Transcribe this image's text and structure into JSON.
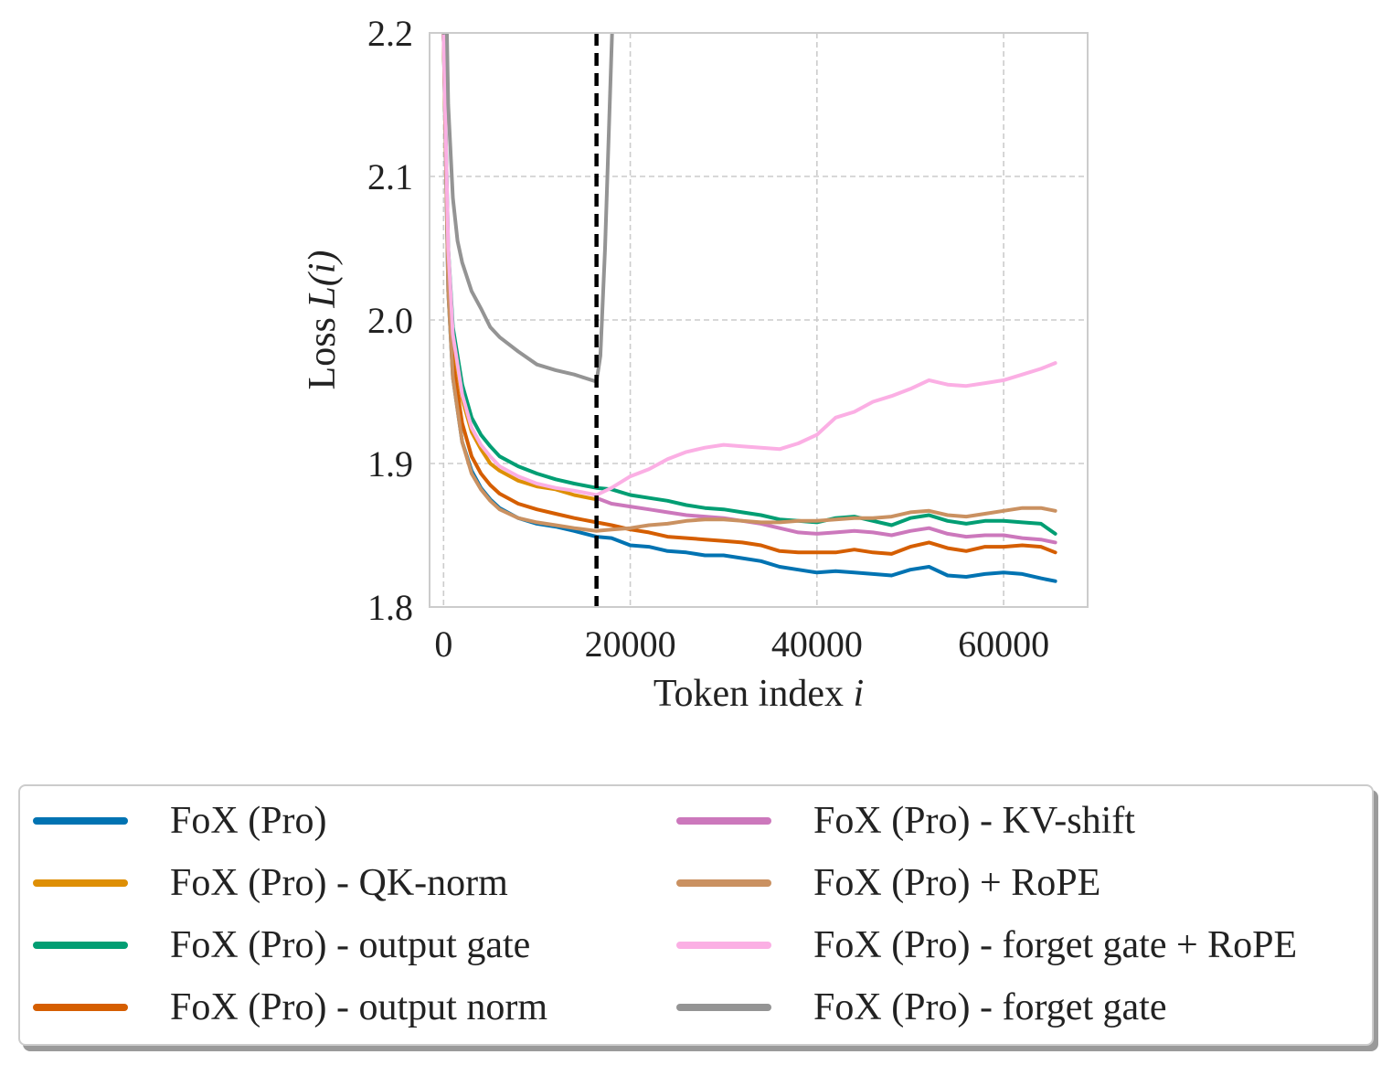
{
  "chart_data": {
    "type": "line",
    "title": "",
    "xlabel_prefix": "Token index ",
    "xlabel_var": "i",
    "ylabel_prefix": "Loss ",
    "ylabel_var": "L(i)",
    "xlim": [
      -1500,
      69000
    ],
    "ylim": [
      1.8,
      2.2
    ],
    "xticks": [
      0,
      20000,
      40000,
      60000
    ],
    "xtick_labels": [
      "0",
      "20000",
      "40000",
      "60000"
    ],
    "yticks": [
      1.8,
      1.9,
      2.0,
      2.1,
      2.2
    ],
    "ytick_labels": [
      "1.8",
      "1.9",
      "2.0",
      "2.1",
      "2.2"
    ],
    "grid": true,
    "vline_x": 16384,
    "legend_position": "below",
    "series": [
      {
        "name": "FoX (Pro)",
        "color": "#0173b2",
        "x": [
          0,
          500,
          1000,
          2000,
          3000,
          4000,
          5000,
          6000,
          8000,
          10000,
          12000,
          14000,
          16384,
          18000,
          20000,
          22000,
          24000,
          26000,
          28000,
          30000,
          32000,
          34000,
          36000,
          38000,
          40000,
          42000,
          44000,
          46000,
          48000,
          50000,
          52000,
          54000,
          56000,
          58000,
          60000,
          62000,
          64000,
          65536
        ],
        "y": [
          2.2,
          2.02,
          1.96,
          1.915,
          1.895,
          1.883,
          1.875,
          1.869,
          1.862,
          1.858,
          1.856,
          1.853,
          1.849,
          1.848,
          1.843,
          1.842,
          1.839,
          1.838,
          1.836,
          1.836,
          1.834,
          1.832,
          1.828,
          1.826,
          1.824,
          1.825,
          1.824,
          1.823,
          1.822,
          1.826,
          1.828,
          1.822,
          1.821,
          1.823,
          1.824,
          1.823,
          1.82,
          1.818
        ]
      },
      {
        "name": "FoX (Pro) - QK-norm",
        "color": "#de8f05",
        "x": [
          0,
          500,
          1000,
          2000,
          3000,
          4000,
          5000,
          6000,
          8000,
          10000,
          12000,
          14000,
          16384
        ],
        "y": [
          2.2,
          2.04,
          1.985,
          1.945,
          1.922,
          1.91,
          1.9,
          1.895,
          1.888,
          1.884,
          1.882,
          1.878,
          1.875
        ]
      },
      {
        "name": "FoX (Pro) - output gate",
        "color": "#029e73",
        "x": [
          0,
          500,
          1000,
          2000,
          3000,
          4000,
          5000,
          6000,
          8000,
          10000,
          12000,
          14000,
          16384,
          18000,
          20000,
          22000,
          24000,
          26000,
          28000,
          30000,
          32000,
          34000,
          36000,
          38000,
          40000,
          42000,
          44000,
          46000,
          48000,
          50000,
          52000,
          54000,
          56000,
          58000,
          60000,
          62000,
          64000,
          65536
        ],
        "y": [
          2.2,
          2.05,
          1.995,
          1.955,
          1.932,
          1.92,
          1.912,
          1.905,
          1.898,
          1.893,
          1.889,
          1.886,
          1.883,
          1.882,
          1.878,
          1.876,
          1.874,
          1.871,
          1.869,
          1.868,
          1.866,
          1.864,
          1.861,
          1.86,
          1.859,
          1.862,
          1.863,
          1.86,
          1.857,
          1.862,
          1.864,
          1.86,
          1.858,
          1.86,
          1.86,
          1.859,
          1.858,
          1.851
        ]
      },
      {
        "name": "FoX (Pro) - output norm",
        "color": "#d55e00",
        "x": [
          0,
          500,
          1000,
          2000,
          3000,
          4000,
          5000,
          6000,
          8000,
          10000,
          12000,
          14000,
          16384,
          18000,
          20000,
          22000,
          24000,
          26000,
          28000,
          30000,
          32000,
          34000,
          36000,
          38000,
          40000,
          42000,
          44000,
          46000,
          48000,
          50000,
          52000,
          54000,
          56000,
          58000,
          60000,
          62000,
          64000,
          65536
        ],
        "y": [
          2.2,
          2.03,
          1.97,
          1.928,
          1.905,
          1.893,
          1.885,
          1.879,
          1.872,
          1.868,
          1.865,
          1.862,
          1.859,
          1.857,
          1.854,
          1.852,
          1.849,
          1.848,
          1.847,
          1.846,
          1.845,
          1.843,
          1.839,
          1.838,
          1.838,
          1.838,
          1.84,
          1.838,
          1.837,
          1.842,
          1.845,
          1.841,
          1.839,
          1.842,
          1.842,
          1.843,
          1.842,
          1.838
        ]
      },
      {
        "name": "FoX (Pro) - KV-shift",
        "color": "#cc78bc",
        "x": [
          16384,
          18000,
          20000,
          22000,
          24000,
          26000,
          28000,
          30000,
          32000,
          34000,
          36000,
          38000,
          40000,
          42000,
          44000,
          46000,
          48000,
          50000,
          52000,
          54000,
          56000,
          58000,
          60000,
          62000,
          64000,
          65536
        ],
        "y": [
          1.876,
          1.872,
          1.87,
          1.868,
          1.866,
          1.864,
          1.863,
          1.862,
          1.86,
          1.858,
          1.855,
          1.852,
          1.851,
          1.852,
          1.853,
          1.852,
          1.85,
          1.853,
          1.855,
          1.851,
          1.849,
          1.85,
          1.85,
          1.848,
          1.847,
          1.845
        ]
      },
      {
        "name": "FoX (Pro) + RoPE",
        "color": "#ca9161",
        "x": [
          0,
          500,
          1000,
          2000,
          3000,
          4000,
          5000,
          6000,
          8000,
          10000,
          12000,
          14000,
          16384,
          18000,
          20000,
          22000,
          24000,
          26000,
          28000,
          30000,
          32000,
          34000,
          36000,
          38000,
          40000,
          42000,
          44000,
          46000,
          48000,
          50000,
          52000,
          54000,
          56000,
          58000,
          60000,
          62000,
          64000,
          65536
        ],
        "y": [
          2.2,
          2.02,
          1.96,
          1.915,
          1.893,
          1.882,
          1.874,
          1.868,
          1.862,
          1.859,
          1.857,
          1.855,
          1.853,
          1.854,
          1.855,
          1.857,
          1.858,
          1.86,
          1.861,
          1.861,
          1.86,
          1.859,
          1.859,
          1.86,
          1.86,
          1.861,
          1.862,
          1.862,
          1.863,
          1.866,
          1.867,
          1.864,
          1.863,
          1.865,
          1.867,
          1.869,
          1.869,
          1.867
        ]
      },
      {
        "name": "FoX (Pro) - forget gate + RoPE",
        "color": "#fbafe4",
        "x": [
          0,
          500,
          1000,
          2000,
          3000,
          4000,
          5000,
          6000,
          8000,
          10000,
          12000,
          14000,
          16384,
          18000,
          20000,
          22000,
          24000,
          26000,
          28000,
          30000,
          32000,
          34000,
          36000,
          38000,
          40000,
          42000,
          44000,
          46000,
          48000,
          50000,
          52000,
          54000,
          56000,
          58000,
          60000,
          62000,
          64000,
          65536
        ],
        "y": [
          2.2,
          2.05,
          1.99,
          1.948,
          1.925,
          1.913,
          1.905,
          1.898,
          1.891,
          1.886,
          1.883,
          1.881,
          1.878,
          1.883,
          1.891,
          1.896,
          1.903,
          1.908,
          1.911,
          1.913,
          1.912,
          1.911,
          1.91,
          1.914,
          1.92,
          1.932,
          1.936,
          1.943,
          1.947,
          1.952,
          1.958,
          1.955,
          1.954,
          1.956,
          1.958,
          1.962,
          1.966,
          1.97
        ]
      },
      {
        "name": "FoX (Pro) - forget gate",
        "color": "#949494",
        "x": [
          0,
          300,
          500,
          1000,
          1500,
          2000,
          3000,
          4000,
          5000,
          6000,
          8000,
          10000,
          12000,
          14000,
          16384,
          16800,
          17300,
          17800,
          18100
        ],
        "y": [
          2.2,
          2.22,
          2.15,
          2.085,
          2.055,
          2.04,
          2.02,
          2.008,
          1.995,
          1.988,
          1.978,
          1.969,
          1.965,
          1.962,
          1.957,
          1.975,
          2.05,
          2.15,
          2.21
        ]
      }
    ]
  }
}
